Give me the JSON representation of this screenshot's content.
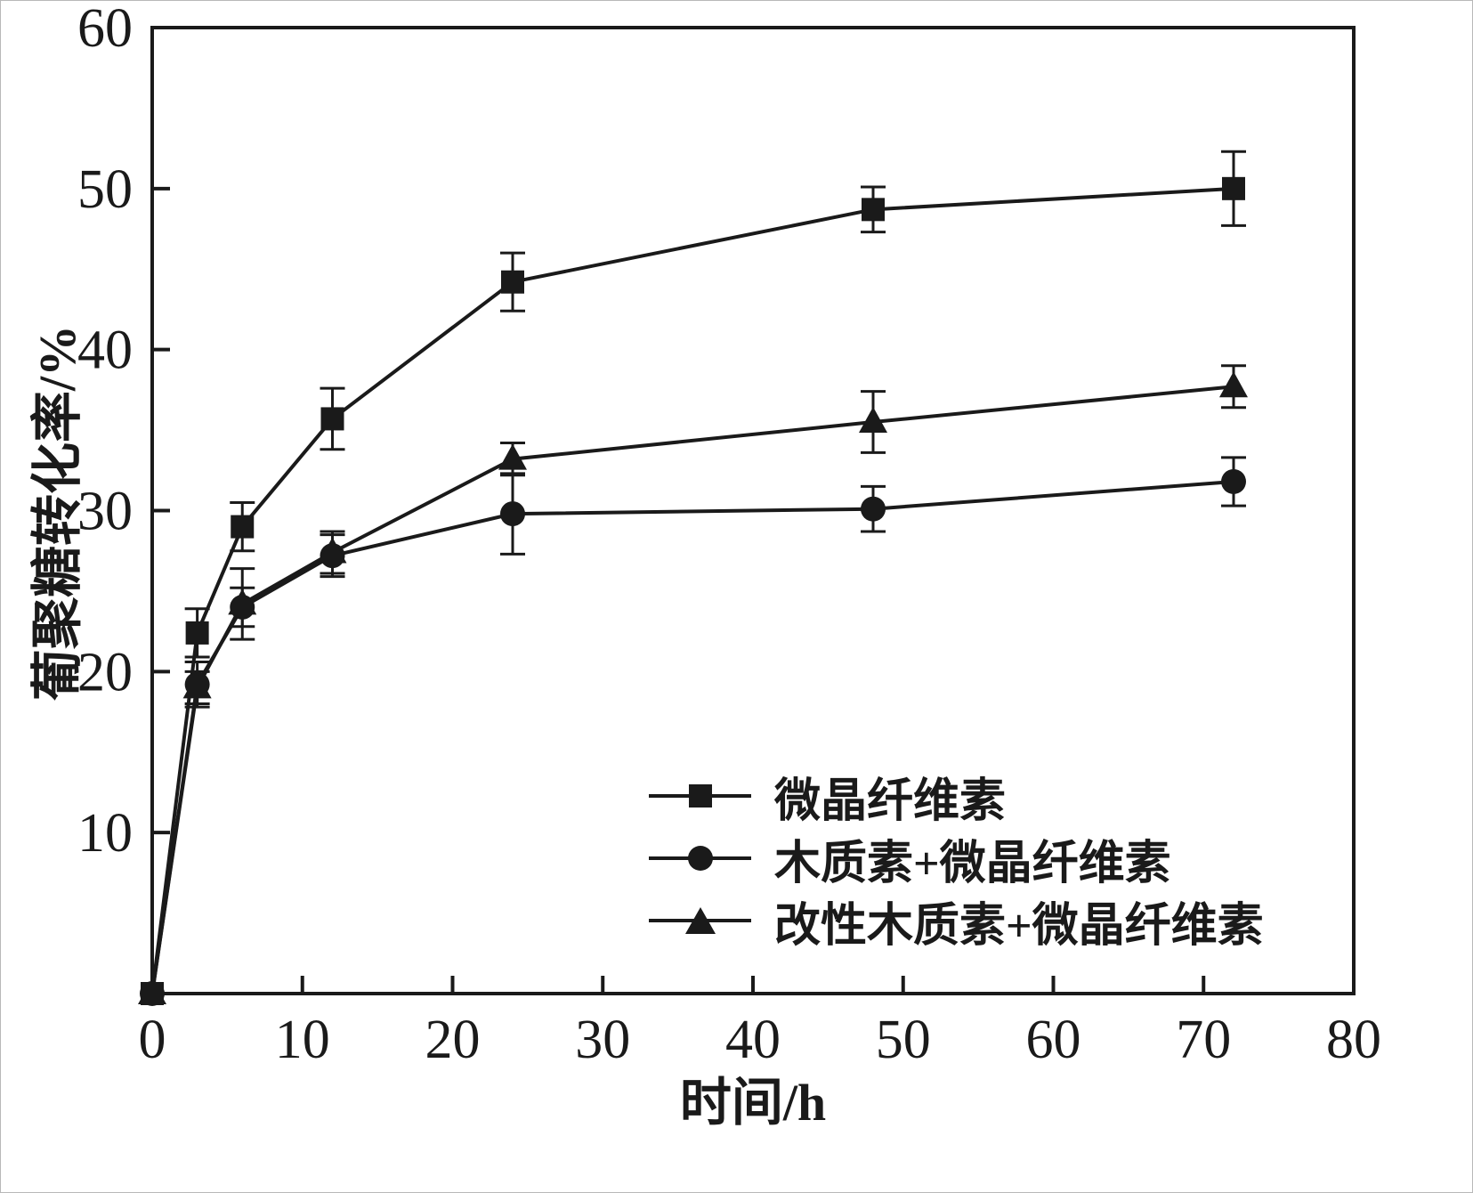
{
  "page": {
    "background": "#ffffff"
  },
  "chart_data": {
    "type": "line",
    "title": "",
    "xlabel": "时间/h",
    "ylabel": "葡聚糖转化率/%",
    "xlim": [
      0,
      80
    ],
    "ylim": [
      0,
      60
    ],
    "xticks": [
      0,
      10,
      20,
      30,
      40,
      50,
      60,
      70,
      80
    ],
    "yticks": [
      10,
      20,
      30,
      40,
      50,
      60
    ],
    "grid": false,
    "legend_position": "inside-bottom-right",
    "x": [
      0,
      3,
      6,
      12,
      24,
      48,
      72
    ],
    "series": [
      {
        "name": "微晶纤维素",
        "marker": "square",
        "values": [
          0,
          22.4,
          29.0,
          35.7,
          44.2,
          48.7,
          50.0
        ],
        "errors": [
          0,
          1.5,
          1.5,
          1.9,
          1.8,
          1.4,
          2.3
        ]
      },
      {
        "name": "木质素+微晶纤维素",
        "marker": "circle",
        "values": [
          0,
          19.2,
          24.0,
          27.2,
          29.8,
          30.1,
          31.8
        ],
        "errors": [
          0,
          1.4,
          1.2,
          1.3,
          2.5,
          1.4,
          1.5
        ]
      },
      {
        "name": "改性木质素+微晶纤维素",
        "marker": "triangle",
        "values": [
          0,
          19.0,
          24.2,
          27.4,
          33.2,
          35.5,
          37.7
        ],
        "errors": [
          0,
          1.0,
          2.2,
          1.3,
          1.0,
          1.9,
          1.3
        ]
      }
    ],
    "colors": {
      "line": "#1a1a1a"
    }
  }
}
